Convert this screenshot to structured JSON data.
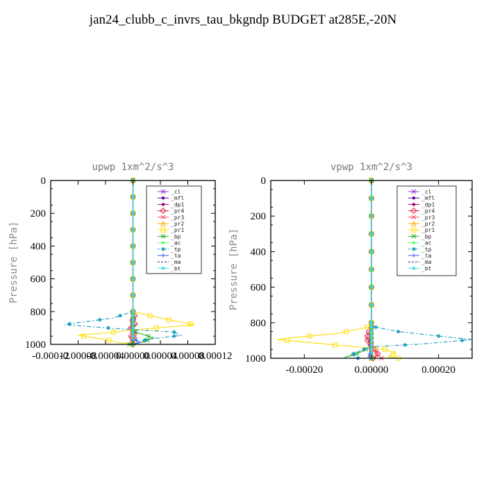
{
  "title": "jan24_clubb_c_invrs_tau_bkgndp  BUDGET at285E,-20N",
  "chart_data": [
    {
      "type": "line",
      "title": "upwp   1xm^2/s^3",
      "ylabel": "Pressure [hPa]",
      "xlim": [
        -0.00012,
        0.00012
      ],
      "ylim": [
        1000,
        0
      ],
      "xticks": [
        -0.00012,
        -8e-05,
        -4e-05,
        0.0,
        4e-05,
        8e-05,
        0.00012
      ],
      "xtick_labels": [
        "-0.00012",
        "-0.00008",
        "-0.00004",
        "0.00000",
        "0.00004",
        "0.00008",
        "0.00012"
      ],
      "yticks": [
        0,
        200,
        400,
        600,
        800,
        1000
      ],
      "ytick_labels": [
        "0",
        "200",
        "400",
        "600",
        "800",
        "1000"
      ],
      "legend_position": "top-right",
      "series": [
        {
          "name": "_cl",
          "color": "#9933cc",
          "marker": "cross",
          "dash": "",
          "points": [
            [
              0.0,
              0
            ],
            [
              0.0,
              1000
            ]
          ]
        },
        {
          "name": "_mfl",
          "color": "#660099",
          "marker": "dot",
          "dash": "",
          "points": [
            [
              0.0,
              0
            ],
            [
              0.0,
              1000
            ]
          ]
        },
        {
          "name": "_dp1",
          "color": "#990066",
          "marker": "dot",
          "dash": "",
          "points": [
            [
              0.0,
              0
            ],
            [
              0.0,
              800
            ],
            [
              -2e-06,
              900
            ],
            [
              0.0,
              1000
            ]
          ]
        },
        {
          "name": "_pr4",
          "color": "#dd2244",
          "marker": "diamond",
          "dash": "",
          "points": [
            [
              0.0,
              0
            ],
            [
              0.0,
              800
            ],
            [
              4e-06,
              840
            ],
            [
              -4e-06,
              860
            ],
            [
              5e-06,
              880
            ],
            [
              -3e-06,
              900
            ],
            [
              2e-06,
              930
            ],
            [
              -5e-06,
              960
            ],
            [
              3e-06,
              985
            ],
            [
              0.0,
              1000
            ]
          ]
        },
        {
          "name": "_pr3",
          "color": "#ff4466",
          "marker": "cross",
          "dash": "",
          "points": [
            [
              0.0,
              0
            ],
            [
              0.0,
              900
            ],
            [
              4e-06,
              960
            ],
            [
              -6e-06,
              995
            ]
          ]
        },
        {
          "name": "_pr2",
          "color": "#ffaa00",
          "marker": "tri",
          "dash": "",
          "points": [
            [
              0.0,
              0
            ],
            [
              0.0,
              1000
            ]
          ]
        },
        {
          "name": "_pr1",
          "color": "#ffdd00",
          "marker": "square",
          "dash": "",
          "points": [
            [
              0.0,
              0
            ],
            [
              0.0,
              800
            ],
            [
              4e-05,
              840
            ],
            [
              9e-05,
              880
            ],
            [
              2e-05,
              905
            ],
            [
              -4e-05,
              930
            ],
            [
              -8e-05,
              945
            ],
            [
              -4e-05,
              970
            ],
            [
              -2e-05,
              990
            ],
            [
              0.0,
              1000
            ]
          ]
        },
        {
          "name": "_bp",
          "color": "#22aa22",
          "marker": "cross",
          "dash": "",
          "points": [
            [
              0.0,
              0
            ],
            [
              0.0,
              920
            ],
            [
              3e-05,
              960
            ],
            [
              1.5e-05,
              985
            ],
            [
              -5e-06,
              1000
            ]
          ]
        },
        {
          "name": "_ac",
          "color": "#66ff66",
          "marker": "dot",
          "dash": "",
          "points": [
            [
              0.0,
              0
            ],
            [
              0.0,
              1000
            ]
          ]
        },
        {
          "name": "_tp",
          "color": "#1199bb",
          "marker": "star",
          "dash": "6,3,2,3",
          "points": [
            [
              0.0,
              0
            ],
            [
              0.0,
              800
            ],
            [
              -3e-05,
              840
            ],
            [
              -8.5e-05,
              870
            ],
            [
              -0.0001,
              880
            ],
            [
              -2e-05,
              905
            ],
            [
              6e-05,
              925
            ],
            [
              7e-05,
              945
            ],
            [
              2e-05,
              970
            ],
            [
              5e-06,
              995
            ],
            [
              0.0,
              1000
            ]
          ]
        },
        {
          "name": "_ta",
          "color": "#3355ff",
          "marker": "plus",
          "dash": "",
          "points": [
            [
              0.0,
              0
            ],
            [
              0.0,
              960
            ],
            [
              1e-05,
              990
            ],
            [
              0.0,
              1000
            ]
          ]
        },
        {
          "name": "_ma",
          "color": "#113388",
          "marker": "none",
          "dash": "4,2",
          "points": [
            [
              0.0,
              0
            ],
            [
              0.0,
              1000
            ]
          ]
        },
        {
          "name": "_bt",
          "color": "#33ddee",
          "marker": "dot",
          "dash": "",
          "points": [
            [
              0.0,
              0
            ],
            [
              0.0,
              1000
            ]
          ]
        }
      ]
    },
    {
      "type": "line",
      "title": "vpwp   1xm^2/s^3",
      "ylabel": "Pressure [hPa]",
      "xlim": [
        -0.0003,
        0.0003
      ],
      "ylim": [
        1000,
        0
      ],
      "xticks": [
        -0.0002,
        0.0,
        0.0002
      ],
      "xtick_labels": [
        "-0.00020",
        "0.00000",
        "0.00020"
      ],
      "yticks": [
        0,
        200,
        400,
        600,
        800,
        1000
      ],
      "ytick_labels": [
        "0",
        "200",
        "400",
        "600",
        "800",
        "1000"
      ],
      "legend_position": "top-right",
      "series": [
        {
          "name": "_cl",
          "color": "#9933cc",
          "marker": "cross",
          "dash": "",
          "points": [
            [
              0.0,
              0
            ],
            [
              0.0,
              1000
            ]
          ]
        },
        {
          "name": "_mfl",
          "color": "#660099",
          "marker": "dot",
          "dash": "",
          "points": [
            [
              0.0,
              0
            ],
            [
              0.0,
              1000
            ]
          ]
        },
        {
          "name": "_dp1",
          "color": "#990066",
          "marker": "dot",
          "dash": "",
          "points": [
            [
              0.0,
              0
            ],
            [
              0.0,
              850
            ],
            [
              -5e-06,
              900
            ],
            [
              0.0,
              1000
            ]
          ]
        },
        {
          "name": "_pr4",
          "color": "#dd2244",
          "marker": "diamond",
          "dash": "",
          "points": [
            [
              0.0,
              0
            ],
            [
              0.0,
              820
            ],
            [
              -1e-05,
              860
            ],
            [
              -1.5e-05,
              890
            ],
            [
              -5e-06,
              920
            ],
            [
              1e-05,
              950
            ],
            [
              2e-05,
              980
            ],
            [
              5e-06,
              1000
            ]
          ]
        },
        {
          "name": "_pr3",
          "color": "#ff4466",
          "marker": "cross",
          "dash": "",
          "points": [
            [
              0.0,
              0
            ],
            [
              0.0,
              930
            ],
            [
              1.5e-05,
              970
            ],
            [
              3e-05,
              1000
            ]
          ]
        },
        {
          "name": "_pr2",
          "color": "#ffaa00",
          "marker": "tri",
          "dash": "",
          "points": [
            [
              0.0,
              0
            ],
            [
              0.0,
              1000
            ]
          ]
        },
        {
          "name": "_pr1",
          "color": "#ffdd00",
          "marker": "square",
          "dash": "",
          "points": [
            [
              0.0,
              0
            ],
            [
              0.0,
              820
            ],
            [
              -0.0001,
              860
            ],
            [
              -0.00024,
              885
            ],
            [
              -0.00028,
              895
            ],
            [
              -8e-05,
              930
            ],
            [
              4e-05,
              950
            ],
            [
              7e-05,
              970
            ],
            [
              5e-05,
              990
            ],
            [
              8e-05,
              1000
            ]
          ]
        },
        {
          "name": "_bp",
          "color": "#22aa22",
          "marker": "cross",
          "dash": "",
          "points": [
            [
              0.0,
              0
            ],
            [
              0.0,
              930
            ],
            [
              -2e-05,
              955
            ],
            [
              -5e-05,
              980
            ],
            [
              -8e-05,
              995
            ]
          ]
        },
        {
          "name": "_ac",
          "color": "#66ff66",
          "marker": "dot",
          "dash": "",
          "points": [
            [
              0.0,
              0
            ],
            [
              0.0,
              1000
            ]
          ]
        },
        {
          "name": "_tp",
          "color": "#1199bb",
          "marker": "star",
          "dash": "6,3,2,3",
          "points": [
            [
              0.0,
              0
            ],
            [
              0.0,
              820
            ],
            [
              8e-05,
              850
            ],
            [
              0.0002,
              875
            ],
            [
              0.0003,
              895
            ],
            [
              0.00015,
              920
            ],
            [
              0.0,
              935
            ],
            [
              -3e-05,
              955
            ],
            [
              -6e-05,
              980
            ],
            [
              -4e-05,
              1000
            ]
          ]
        },
        {
          "name": "_ta",
          "color": "#3355ff",
          "marker": "plus",
          "dash": "",
          "points": [
            [
              0.0,
              0
            ],
            [
              0.0,
              960
            ],
            [
              -1e-05,
              990
            ],
            [
              0.0,
              1000
            ]
          ]
        },
        {
          "name": "_ma",
          "color": "#113388",
          "marker": "none",
          "dash": "4,2",
          "points": [
            [
              0.0,
              0
            ],
            [
              0.0,
              1000
            ]
          ]
        },
        {
          "name": "_bt",
          "color": "#33ddee",
          "marker": "dot",
          "dash": "",
          "points": [
            [
              0.0,
              0
            ],
            [
              0.0,
              1000
            ]
          ]
        }
      ]
    }
  ]
}
